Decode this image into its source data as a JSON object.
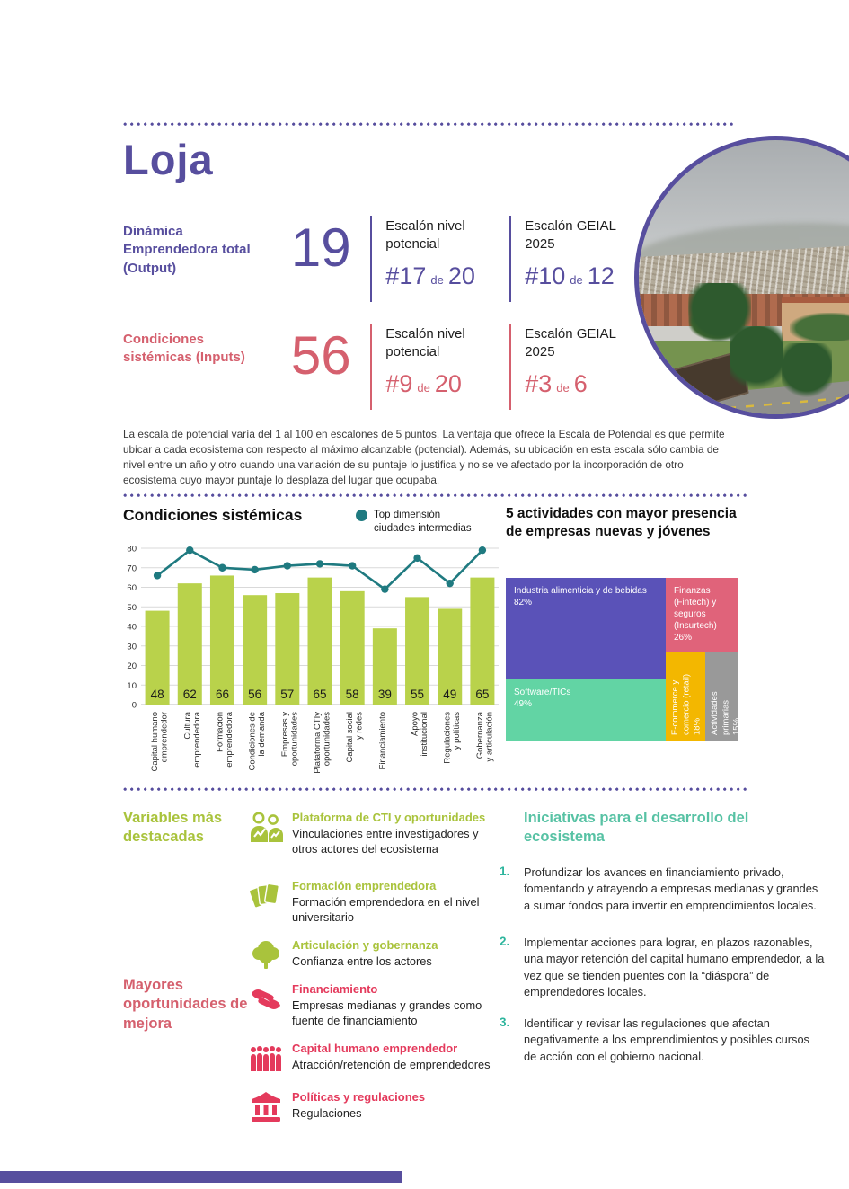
{
  "colors": {
    "purple": "#574e9e",
    "red_heading": "#d5606e",
    "red_item": "#e43a5c",
    "lime": "#a9c33c",
    "bar_green": "#b9d24b",
    "teal_dark": "#1f7a80",
    "teal_heading": "#57c2a4",
    "teal_number": "#2db59d"
  },
  "header": {
    "title": "Loja"
  },
  "metrics": [
    {
      "label": "Dinámica Emprendedora total (Output)",
      "value": "19",
      "columns": [
        {
          "title": "Escalón nivel potencial",
          "rank": "#17",
          "connector": "de",
          "total": "20"
        },
        {
          "title": "Escalón GEIAL 2025",
          "rank": "#10",
          "connector": "de",
          "total": "12"
        }
      ]
    },
    {
      "label": "Condiciones sistémicas (Inputs)",
      "value": "56",
      "columns": [
        {
          "title": "Escalón nivel potencial",
          "rank": "#9",
          "connector": "de",
          "total": "20"
        },
        {
          "title": "Escalón GEIAL 2025",
          "rank": "#3",
          "connector": "de",
          "total": "6"
        }
      ]
    }
  ],
  "scale_note": "La escala de potencial varía del 1 al 100 en escalones de 5 puntos. La ventaja que ofrece la Escala de Potencial es que permite ubicar a cada ecosistema con respecto al máximo alcanzable (potencial). Además, su ubicación en esta escala sólo cambia de nivel entre un año y otro cuando una variación de su puntaje lo justifica y no se ve afectado por la incorporación de otro ecosistema cuyo mayor puntaje lo desplaza del lugar que ocupaba.",
  "chart_data": [
    {
      "type": "bar",
      "title": "Condiciones sistémicas",
      "legend": [
        {
          "label": "Top dimensión ciudades intermedias",
          "color": "#1f7a80"
        }
      ],
      "categories": [
        "Capital humano\nemprendedor",
        "Cultura\nemprendedora",
        "Formación\nemprendedora",
        "Condiciones de\nla demanda",
        "Empresas y\noportunidades",
        "Plataforma CTIy\noportunidades",
        "Capital social\ny redes",
        "Financiamiento",
        "Apoyo\ninstitucional",
        "Regulaciones\ny políticas",
        "Gobernanza\ny articulación"
      ],
      "series": [
        {
          "name": "Loja",
          "type": "bar",
          "color": "#b9d24b",
          "values": [
            48,
            62,
            66,
            56,
            57,
            65,
            58,
            39,
            55,
            49,
            65
          ]
        },
        {
          "name": "Top dimensión ciudades intermedias",
          "type": "line",
          "color": "#1f7a80",
          "values": [
            66,
            79,
            70,
            69,
            71,
            72,
            71,
            59,
            75,
            62,
            79
          ]
        }
      ],
      "ylim": [
        0,
        80
      ],
      "ytick_step": 10,
      "grid": true,
      "legend_position": "top-right"
    },
    {
      "type": "treemap",
      "title": "5 actividades con mayor presencia de empresas nuevas y jóvenes",
      "items": [
        {
          "label": "Industria alimenticia y de bebidas",
          "pct": "82%",
          "value": 82,
          "color": "#5a52b8"
        },
        {
          "label": "Finanzas (Fintech) y seguros (Insurtech)",
          "pct": "26%",
          "value": 26,
          "color": "#e0637a"
        },
        {
          "label": "Software/TICs",
          "pct": "49%",
          "value": 49,
          "color": "#62d4a4"
        },
        {
          "label": "E-commerce y comercio (retail)",
          "pct": "18%",
          "value": 18,
          "color": "#f3b700"
        },
        {
          "label": "Actividades primarias",
          "pct": "15%",
          "value": 15,
          "color": "#999999"
        }
      ]
    }
  ],
  "highlights": {
    "heading": "Variables más destacadas",
    "items": [
      {
        "icon": "collaboration-icon",
        "title": "Plataforma de CTI y oportunidades",
        "desc": "Vinculaciones entre investigadores y otros actores del ecosistema"
      },
      {
        "icon": "cards-icon",
        "title": "Formación emprendedora",
        "desc": "Formación emprendedora en el nivel universitario"
      },
      {
        "icon": "tree-icon",
        "title": "Articulación y gobernanza",
        "desc": "Confianza entre los actores"
      }
    ]
  },
  "opportunities": {
    "heading": "Mayores oportunidades de mejora",
    "items": [
      {
        "icon": "handshake-icon",
        "title": "Financiamiento",
        "desc": "Empresas medianas y grandes como fuente de financiamiento"
      },
      {
        "icon": "people-group-icon",
        "title": "Capital humano emprendedor",
        "desc": "Atracción/retención de emprendedores"
      },
      {
        "icon": "bank-icon",
        "title": "Políticas y regulaciones",
        "desc": "Regulaciones"
      }
    ]
  },
  "initiatives": {
    "heading": "Iniciativas para el desarrollo del ecosistema",
    "items": [
      {
        "number": "1.",
        "text": "Profundizar los avances en financiamiento privado, fomentando y atrayendo a empresas medianas y grandes a sumar fondos para invertir en emprendimientos locales."
      },
      {
        "number": "2.",
        "text": "Implementar acciones para lograr, en plazos razonables, una mayor retención del capital humano emprendedor, a la vez que se tienden puentes con la “diáspora” de emprendedores locales."
      },
      {
        "number": "3.",
        "text": "Identificar y revisar las regulaciones que afectan negativamente a los emprendimientos y posibles cursos de acción con el gobierno nacional."
      }
    ]
  }
}
